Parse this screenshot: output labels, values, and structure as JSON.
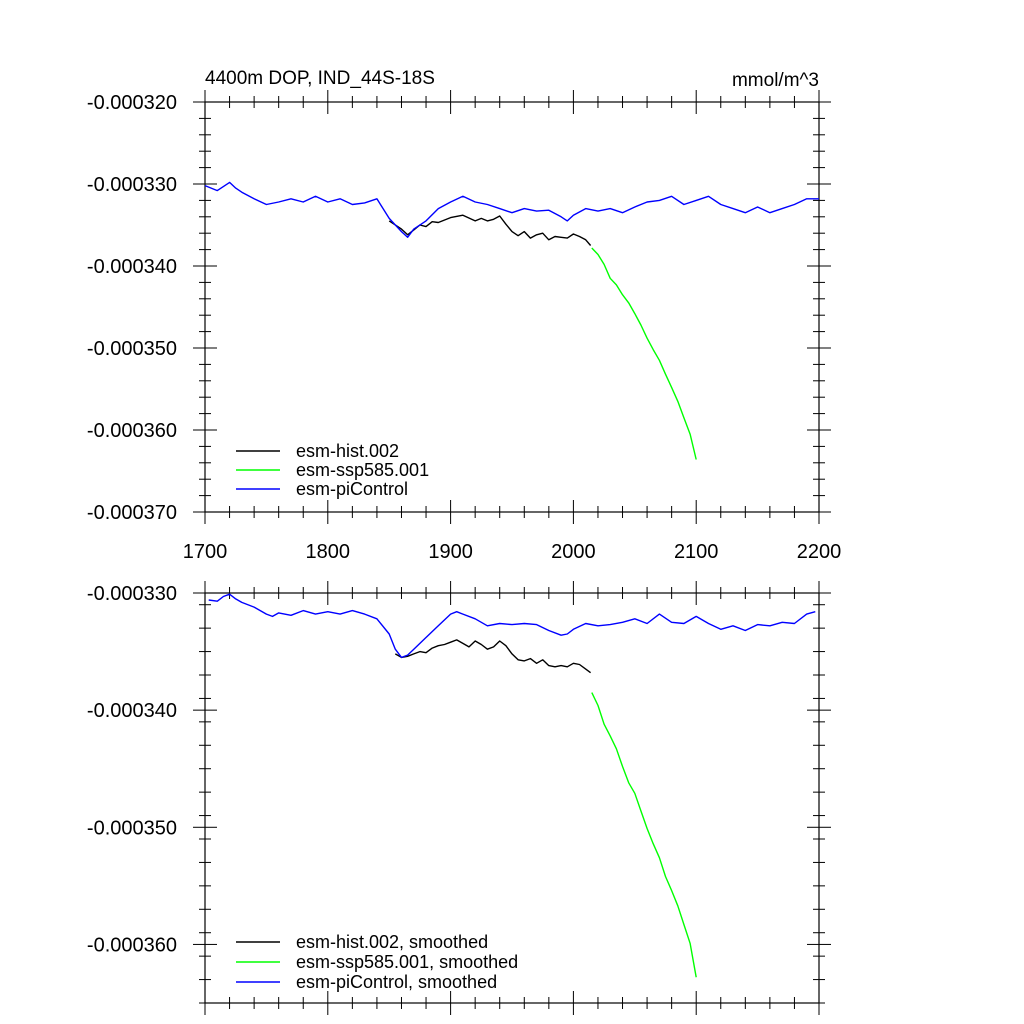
{
  "chart_data": [
    {
      "type": "line",
      "title": "4400m DOP, IND_44S-18S",
      "units": "mmol/m^3",
      "xlim": [
        1700,
        2200
      ],
      "ylim": [
        -0.00037,
        -0.00032
      ],
      "xticks": [
        1700,
        1800,
        1900,
        2000,
        2100,
        2200
      ],
      "xtick_labels": [
        "1700",
        "1800",
        "1900",
        "2000",
        "2100",
        "2200"
      ],
      "yticks": [
        -0.00032,
        -0.00033,
        -0.00034,
        -0.00035,
        -0.00036,
        -0.00037
      ],
      "ytick_labels": [
        "-0.000320",
        "-0.000330",
        "-0.000340",
        "-0.000350",
        "-0.000360",
        "-0.000370"
      ],
      "legend_position": "bottom-left",
      "series": [
        {
          "name": "esm-hist.002",
          "color": "#000000",
          "x": [
            1850,
            1860,
            1865,
            1870,
            1875,
            1880,
            1885,
            1890,
            1900,
            1910,
            1920,
            1925,
            1930,
            1935,
            1940,
            1945,
            1950,
            1955,
            1960,
            1965,
            1970,
            1975,
            1980,
            1985,
            1990,
            1995,
            2000,
            2005,
            2010,
            2014
          ],
          "y": [
            -0.0003345,
            -0.0003355,
            -0.0003362,
            -0.0003356,
            -0.000335,
            -0.0003352,
            -0.0003346,
            -0.0003347,
            -0.0003341,
            -0.0003338,
            -0.0003345,
            -0.0003342,
            -0.0003345,
            -0.0003343,
            -0.0003339,
            -0.0003349,
            -0.0003358,
            -0.0003363,
            -0.0003358,
            -0.0003366,
            -0.0003362,
            -0.000336,
            -0.0003368,
            -0.0003364,
            -0.0003365,
            -0.0003366,
            -0.0003361,
            -0.0003364,
            -0.0003368,
            -0.0003375
          ]
        },
        {
          "name": "esm-ssp585.001",
          "color": "#00ff00",
          "x": [
            2015,
            2020,
            2025,
            2030,
            2035,
            2040,
            2045,
            2050,
            2055,
            2060,
            2065,
            2070,
            2075,
            2080,
            2085,
            2090,
            2095,
            2100
          ],
          "y": [
            -0.0003378,
            -0.0003386,
            -0.0003398,
            -0.0003415,
            -0.0003423,
            -0.0003435,
            -0.0003445,
            -0.0003458,
            -0.0003472,
            -0.0003488,
            -0.0003502,
            -0.0003515,
            -0.0003532,
            -0.0003548,
            -0.0003565,
            -0.0003585,
            -0.0003605,
            -0.0003636
          ]
        },
        {
          "name": "esm-piControl",
          "color": "#0000ff",
          "x": [
            1700,
            1710,
            1720,
            1725,
            1730,
            1740,
            1750,
            1760,
            1770,
            1780,
            1790,
            1800,
            1810,
            1820,
            1830,
            1840,
            1850,
            1860,
            1865,
            1870,
            1880,
            1890,
            1900,
            1910,
            1920,
            1930,
            1940,
            1950,
            1960,
            1970,
            1980,
            1990,
            1995,
            2000,
            2010,
            2020,
            2030,
            2040,
            2050,
            2060,
            2070,
            2080,
            2090,
            2100,
            2110,
            2120,
            2130,
            2140,
            2150,
            2160,
            2170,
            2180,
            2190,
            2200
          ],
          "y": [
            -0.0003302,
            -0.0003308,
            -0.0003298,
            -0.0003305,
            -0.000331,
            -0.0003318,
            -0.0003325,
            -0.0003322,
            -0.0003318,
            -0.0003322,
            -0.0003315,
            -0.0003322,
            -0.0003318,
            -0.0003325,
            -0.0003323,
            -0.0003318,
            -0.0003342,
            -0.0003358,
            -0.0003365,
            -0.0003355,
            -0.0003345,
            -0.000333,
            -0.0003322,
            -0.0003315,
            -0.0003322,
            -0.0003325,
            -0.000333,
            -0.0003335,
            -0.000333,
            -0.0003333,
            -0.0003332,
            -0.000334,
            -0.0003345,
            -0.0003338,
            -0.000333,
            -0.0003333,
            -0.000333,
            -0.0003335,
            -0.0003328,
            -0.0003322,
            -0.000332,
            -0.0003315,
            -0.0003325,
            -0.000332,
            -0.0003315,
            -0.0003325,
            -0.000333,
            -0.0003335,
            -0.0003328,
            -0.0003335,
            -0.000333,
            -0.0003325,
            -0.0003318,
            -0.0003318
          ]
        }
      ]
    },
    {
      "type": "line",
      "title": "",
      "xlim": [
        1700,
        2200
      ],
      "ylim": [
        -0.000365,
        -0.00033
      ],
      "xticks": [
        1700,
        1800,
        1900,
        2000,
        2100,
        2200
      ],
      "yticks": [
        -0.00033,
        -0.00034,
        -0.00035,
        -0.00036
      ],
      "ytick_labels": [
        "-0.000330",
        "-0.000340",
        "-0.000350",
        "-0.000360"
      ],
      "legend_position": "bottom-left",
      "series": [
        {
          "name": "esm-hist.002, smoothed",
          "color": "#000000",
          "x": [
            1855,
            1860,
            1865,
            1870,
            1875,
            1880,
            1885,
            1890,
            1895,
            1900,
            1905,
            1910,
            1915,
            1920,
            1925,
            1930,
            1935,
            1940,
            1945,
            1950,
            1955,
            1960,
            1965,
            1970,
            1975,
            1980,
            1985,
            1990,
            1995,
            2000,
            2005,
            2010,
            2014
          ],
          "y": [
            -0.0003352,
            -0.0003355,
            -0.0003354,
            -0.0003352,
            -0.000335,
            -0.0003351,
            -0.0003347,
            -0.0003345,
            -0.0003344,
            -0.0003342,
            -0.000334,
            -0.0003343,
            -0.0003346,
            -0.0003341,
            -0.0003344,
            -0.0003348,
            -0.0003346,
            -0.0003341,
            -0.0003345,
            -0.0003352,
            -0.0003357,
            -0.0003358,
            -0.0003356,
            -0.000336,
            -0.0003357,
            -0.0003362,
            -0.0003363,
            -0.0003362,
            -0.0003363,
            -0.000336,
            -0.0003361,
            -0.0003365,
            -0.0003368
          ]
        },
        {
          "name": "esm-ssp585.001, smoothed",
          "color": "#00ff00",
          "x": [
            2015,
            2020,
            2025,
            2030,
            2035,
            2040,
            2045,
            2050,
            2055,
            2060,
            2065,
            2070,
            2075,
            2080,
            2085,
            2090,
            2095,
            2100
          ],
          "y": [
            -0.0003385,
            -0.0003396,
            -0.0003412,
            -0.0003422,
            -0.0003433,
            -0.0003448,
            -0.0003462,
            -0.0003471,
            -0.0003486,
            -0.0003501,
            -0.0003514,
            -0.0003526,
            -0.0003542,
            -0.0003554,
            -0.0003567,
            -0.0003583,
            -0.0003599,
            -0.0003628
          ]
        },
        {
          "name": "esm-piControl, smoothed",
          "color": "#0000ff",
          "x": [
            1703,
            1710,
            1715,
            1720,
            1725,
            1730,
            1740,
            1750,
            1755,
            1760,
            1770,
            1780,
            1790,
            1800,
            1810,
            1820,
            1830,
            1840,
            1850,
            1855,
            1860,
            1865,
            1870,
            1880,
            1890,
            1900,
            1905,
            1910,
            1920,
            1930,
            1940,
            1950,
            1960,
            1970,
            1980,
            1990,
            1995,
            2000,
            2010,
            2020,
            2030,
            2040,
            2050,
            2060,
            2070,
            2080,
            2090,
            2100,
            2110,
            2120,
            2130,
            2140,
            2150,
            2160,
            2170,
            2180,
            2190,
            2197
          ],
          "y": [
            -0.0003306,
            -0.0003307,
            -0.0003303,
            -0.0003301,
            -0.0003305,
            -0.0003308,
            -0.0003312,
            -0.0003318,
            -0.000332,
            -0.0003317,
            -0.0003319,
            -0.0003315,
            -0.0003318,
            -0.0003316,
            -0.0003318,
            -0.0003315,
            -0.0003318,
            -0.0003322,
            -0.0003335,
            -0.0003348,
            -0.0003355,
            -0.0003353,
            -0.0003348,
            -0.0003338,
            -0.0003328,
            -0.0003318,
            -0.0003316,
            -0.0003318,
            -0.0003322,
            -0.0003328,
            -0.0003326,
            -0.0003327,
            -0.0003326,
            -0.0003327,
            -0.0003332,
            -0.0003336,
            -0.0003335,
            -0.0003331,
            -0.0003326,
            -0.0003328,
            -0.0003327,
            -0.0003325,
            -0.0003322,
            -0.0003326,
            -0.0003318,
            -0.0003325,
            -0.0003326,
            -0.000332,
            -0.0003326,
            -0.0003331,
            -0.0003328,
            -0.0003332,
            -0.0003327,
            -0.0003328,
            -0.0003325,
            -0.0003326,
            -0.0003318,
            -0.0003316
          ]
        }
      ]
    }
  ]
}
